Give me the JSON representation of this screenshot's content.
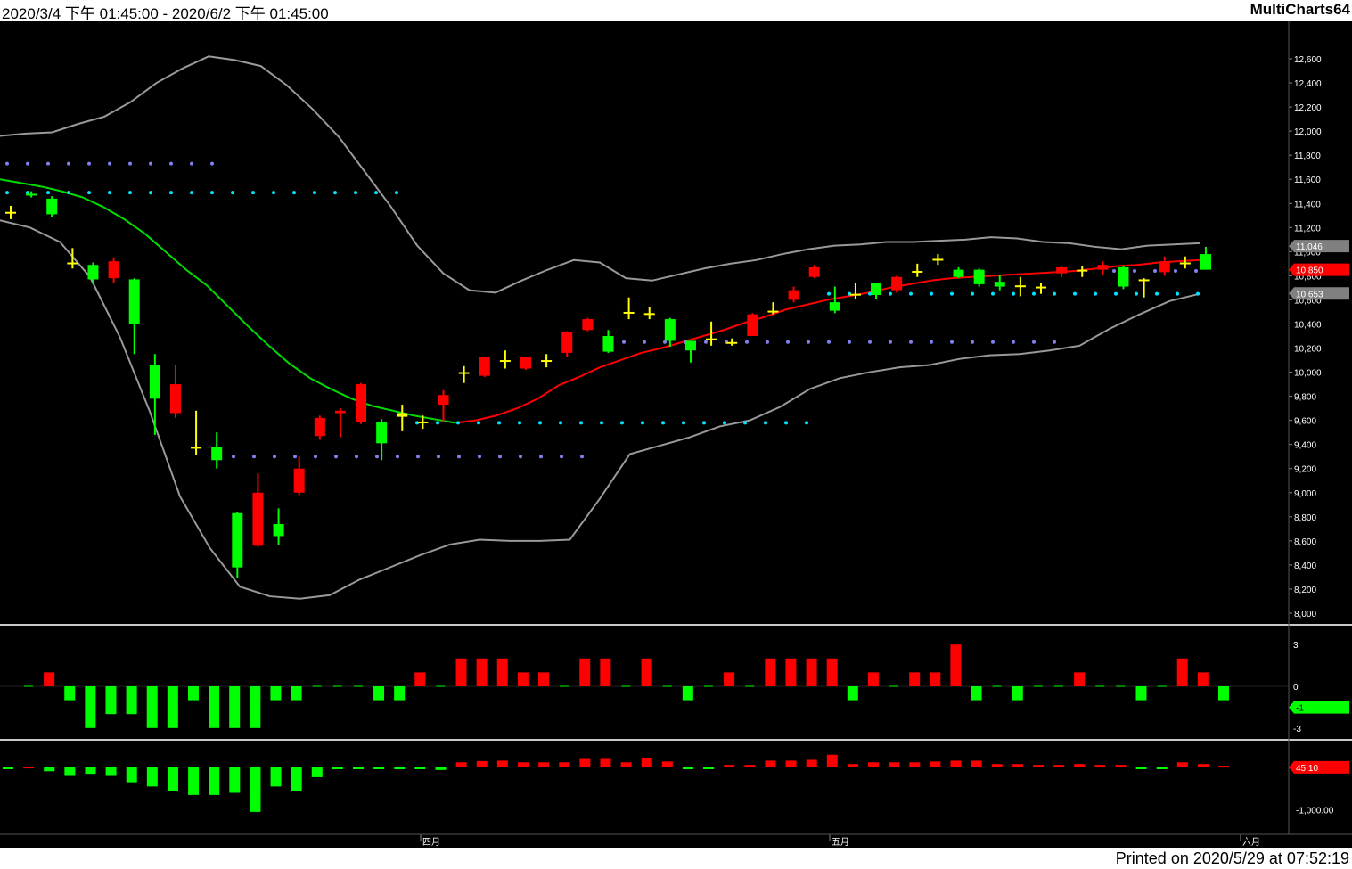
{
  "header": {
    "period": "2020/3/4 下午 01:45:00 - 2020/6/2 下午 01:45:00",
    "brand": "MultiCharts64"
  },
  "footer": {
    "printed": "Printed on 2020/5/29 at 07:52:19"
  },
  "colors": {
    "background": "#000000",
    "up_candle": "#ff0000",
    "down_candle": "#00ff00",
    "neutral_candle": "#ffff00",
    "ma_line_falling": "#00dd00",
    "ma_line_rising": "#ff0000",
    "band_line": "#999999",
    "level_cyan": "#00e5ff",
    "level_purple": "#8080ee"
  },
  "chart_data": [
    {
      "type": "candlestick",
      "title": "",
      "x_labels": [
        "四月",
        "五月",
        "六月"
      ],
      "ylim": [
        8000,
        12800
      ],
      "y_ticks": [
        "8,000",
        "8,200",
        "8,400",
        "8,600",
        "8,800",
        "9,000",
        "9,200",
        "9,400",
        "9,600",
        "9,800",
        "10,000",
        "10,200",
        "10,400",
        "10,600",
        "10,800",
        "11,000",
        "11,200",
        "11,400",
        "11,600",
        "11,800",
        "12,000",
        "12,200",
        "12,400",
        "12,600"
      ],
      "candles": [
        {
          "o": 11330,
          "h": 11380,
          "l": 11270,
          "c": 11330
        },
        {
          "o": 11480,
          "h": 11500,
          "l": 11450,
          "c": 11470
        },
        {
          "o": 11440,
          "h": 11460,
          "l": 11290,
          "c": 11310
        },
        {
          "o": 10910,
          "h": 11030,
          "l": 10860,
          "c": 10910
        },
        {
          "o": 10890,
          "h": 10910,
          "l": 10730,
          "c": 10770
        },
        {
          "o": 10780,
          "h": 10950,
          "l": 10740,
          "c": 10920
        },
        {
          "o": 10770,
          "h": 10780,
          "l": 10150,
          "c": 10400
        },
        {
          "o": 10060,
          "h": 10150,
          "l": 9480,
          "c": 9780
        },
        {
          "o": 9660,
          "h": 10060,
          "l": 9620,
          "c": 9900
        },
        {
          "o": 9380,
          "h": 9680,
          "l": 9310,
          "c": 9380
        },
        {
          "o": 9380,
          "h": 9500,
          "l": 9200,
          "c": 9270
        },
        {
          "o": 8830,
          "h": 8840,
          "l": 8290,
          "c": 8380
        },
        {
          "o": 8560,
          "h": 9160,
          "l": 8550,
          "c": 9000
        },
        {
          "o": 8740,
          "h": 8870,
          "l": 8570,
          "c": 8640
        },
        {
          "o": 9000,
          "h": 9300,
          "l": 8980,
          "c": 9200
        },
        {
          "o": 9470,
          "h": 9640,
          "l": 9440,
          "c": 9620
        },
        {
          "o": 9660,
          "h": 9700,
          "l": 9460,
          "c": 9680
        },
        {
          "o": 9590,
          "h": 9910,
          "l": 9570,
          "c": 9900
        },
        {
          "o": 9590,
          "h": 9610,
          "l": 9270,
          "c": 9410
        },
        {
          "o": 9630,
          "h": 9730,
          "l": 9510,
          "c": 9660
        },
        {
          "o": 9590,
          "h": 9640,
          "l": 9530,
          "c": 9590
        },
        {
          "o": 9730,
          "h": 9850,
          "l": 9590,
          "c": 9810
        },
        {
          "o": 10000,
          "h": 10050,
          "l": 9910,
          "c": 10000
        },
        {
          "o": 9970,
          "h": 10130,
          "l": 9960,
          "c": 10130
        },
        {
          "o": 10100,
          "h": 10180,
          "l": 10030,
          "c": 10100
        },
        {
          "o": 10030,
          "h": 10130,
          "l": 10020,
          "c": 10130
        },
        {
          "o": 10100,
          "h": 10150,
          "l": 10040,
          "c": 10100
        },
        {
          "o": 10160,
          "h": 10340,
          "l": 10130,
          "c": 10330
        },
        {
          "o": 10350,
          "h": 10450,
          "l": 10340,
          "c": 10440
        },
        {
          "o": 10300,
          "h": 10350,
          "l": 10160,
          "c": 10170
        },
        {
          "o": 10500,
          "h": 10620,
          "l": 10440,
          "c": 10500
        },
        {
          "o": 10490,
          "h": 10540,
          "l": 10440,
          "c": 10490
        },
        {
          "o": 10440,
          "h": 10450,
          "l": 10210,
          "c": 10260
        },
        {
          "o": 10260,
          "h": 10260,
          "l": 10080,
          "c": 10180
        },
        {
          "o": 10280,
          "h": 10420,
          "l": 10220,
          "c": 10280
        },
        {
          "o": 10250,
          "h": 10280,
          "l": 10220,
          "c": 10250
        },
        {
          "o": 10300,
          "h": 10490,
          "l": 10300,
          "c": 10480
        },
        {
          "o": 10510,
          "h": 10580,
          "l": 10480,
          "c": 10510
        },
        {
          "o": 10600,
          "h": 10710,
          "l": 10580,
          "c": 10680
        },
        {
          "o": 10790,
          "h": 10890,
          "l": 10780,
          "c": 10870
        },
        {
          "o": 10580,
          "h": 10710,
          "l": 10490,
          "c": 10510
        },
        {
          "o": 10650,
          "h": 10740,
          "l": 10610,
          "c": 10650
        },
        {
          "o": 10740,
          "h": 10740,
          "l": 10610,
          "c": 10640
        },
        {
          "o": 10680,
          "h": 10800,
          "l": 10660,
          "c": 10790
        },
        {
          "o": 10840,
          "h": 10900,
          "l": 10790,
          "c": 10840
        },
        {
          "o": 10940,
          "h": 10980,
          "l": 10890,
          "c": 10940
        },
        {
          "o": 10850,
          "h": 10870,
          "l": 10780,
          "c": 10790
        },
        {
          "o": 10850,
          "h": 10860,
          "l": 10710,
          "c": 10730
        },
        {
          "o": 10750,
          "h": 10810,
          "l": 10680,
          "c": 10710
        },
        {
          "o": 10720,
          "h": 10790,
          "l": 10630,
          "c": 10720
        },
        {
          "o": 10710,
          "h": 10740,
          "l": 10650,
          "c": 10710
        },
        {
          "o": 10820,
          "h": 10880,
          "l": 10790,
          "c": 10870
        },
        {
          "o": 10850,
          "h": 10880,
          "l": 10790,
          "c": 10850
        },
        {
          "o": 10850,
          "h": 10920,
          "l": 10810,
          "c": 10890
        },
        {
          "o": 10870,
          "h": 10880,
          "l": 10690,
          "c": 10710
        },
        {
          "o": 10770,
          "h": 10780,
          "l": 10620,
          "c": 10770
        },
        {
          "o": 10830,
          "h": 10960,
          "l": 10800,
          "c": 10920
        },
        {
          "o": 10910,
          "h": 10960,
          "l": 10860,
          "c": 10910
        },
        {
          "o": 10980,
          "h": 11040,
          "l": 10850,
          "c": 10850
        }
      ],
      "ma_line": [
        11600,
        11570,
        11540,
        11500,
        11450,
        11370,
        11270,
        11150,
        11000,
        10850,
        10720,
        10550,
        10380,
        10220,
        10070,
        9950,
        9860,
        9780,
        9720,
        9680,
        9640,
        9610,
        9580,
        9600,
        9640,
        9700,
        9780,
        9890,
        9960,
        10040,
        10100,
        10160,
        10200,
        10250,
        10300,
        10350,
        10410,
        10460,
        10520,
        10560,
        10600,
        10630,
        10660,
        10700,
        10730,
        10760,
        10780,
        10790,
        10800,
        10810,
        10820,
        10830,
        10840,
        10860,
        10880,
        10890,
        10910,
        10920,
        10930
      ],
      "upper_band": [
        11960,
        11980,
        11990,
        12060,
        12120,
        12240,
        12400,
        12520,
        12620,
        12590,
        12540,
        12380,
        12180,
        11950,
        11660,
        11370,
        11050,
        10820,
        10680,
        10660,
        10760,
        10850,
        10930,
        10910,
        10780,
        10760,
        10810,
        10860,
        10900,
        10930,
        10980,
        11020,
        11050,
        11060,
        11080,
        11080,
        11090,
        11100,
        11120,
        11110,
        11080,
        11070,
        11040,
        11020,
        11050,
        11060,
        11070
      ],
      "lower_band": [
        11260,
        11200,
        11080,
        10790,
        10290,
        9670,
        8970,
        8540,
        8220,
        8140,
        8120,
        8150,
        8280,
        8380,
        8480,
        8570,
        8610,
        8600,
        8600,
        8610,
        8950,
        9320,
        9390,
        9460,
        9550,
        9600,
        9710,
        9860,
        9950,
        10000,
        10040,
        10060,
        10110,
        10140,
        10150,
        10180,
        10220,
        10360,
        10480,
        10590,
        10650
      ],
      "levels": [
        {
          "name": "purple-1",
          "price": 11730
        },
        {
          "name": "cyan-1",
          "price": 11490
        },
        {
          "name": "purple-2",
          "price": 9300
        },
        {
          "name": "cyan-2",
          "price": 9580
        },
        {
          "name": "purple-3",
          "price": 10250
        },
        {
          "name": "cyan-3",
          "price": 10650
        },
        {
          "name": "purple-4",
          "price": 10840
        }
      ],
      "price_tags": [
        {
          "label": "11,046",
          "value": 11046,
          "color": "#808080"
        },
        {
          "label": "10,850",
          "value": 10850,
          "color": "#ff0000"
        },
        {
          "label": "10,653",
          "value": 10653,
          "color": "#808080"
        }
      ]
    },
    {
      "type": "bar",
      "title": "",
      "ylim": [
        -3.6,
        4.0
      ],
      "y_ticks": [
        "3",
        "0",
        "-3"
      ],
      "values": [
        0,
        1,
        -1,
        -3,
        -2,
        -2,
        -3,
        -3,
        -1,
        -3,
        -3,
        -3,
        -1,
        -1,
        0,
        0,
        0,
        -1,
        -1,
        1,
        0,
        2,
        2,
        2,
        1,
        1,
        0,
        2,
        2,
        0,
        2,
        0,
        -1,
        0,
        1,
        0,
        2,
        2,
        2,
        2,
        -1,
        1,
        0,
        1,
        1,
        3,
        -1,
        0,
        -1,
        0,
        0,
        1,
        0,
        0,
        -1,
        0,
        2,
        1,
        -1
      ],
      "price_tag": {
        "label": "-1",
        "value": -1,
        "color": "#00ff00"
      }
    },
    {
      "type": "bar",
      "title": "",
      "ylim": [
        -1500,
        400
      ],
      "y_ticks": [
        "-1,000.00"
      ],
      "values": [
        -40,
        20,
        -90,
        -200,
        -150,
        -200,
        -350,
        -450,
        -550,
        -650,
        -650,
        -600,
        -1050,
        -450,
        -550,
        -230,
        0,
        0,
        -30,
        -30,
        -30,
        -60,
        120,
        150,
        160,
        120,
        120,
        120,
        200,
        200,
        120,
        220,
        140,
        -40,
        0,
        60,
        60,
        160,
        160,
        180,
        300,
        80,
        120,
        120,
        120,
        140,
        160,
        160,
        80,
        80,
        60,
        60,
        80,
        60,
        60,
        -20,
        -20,
        120,
        80,
        40
      ],
      "price_tag": {
        "label": "45.10",
        "value": 45.1,
        "color": "#ff0000"
      }
    }
  ]
}
